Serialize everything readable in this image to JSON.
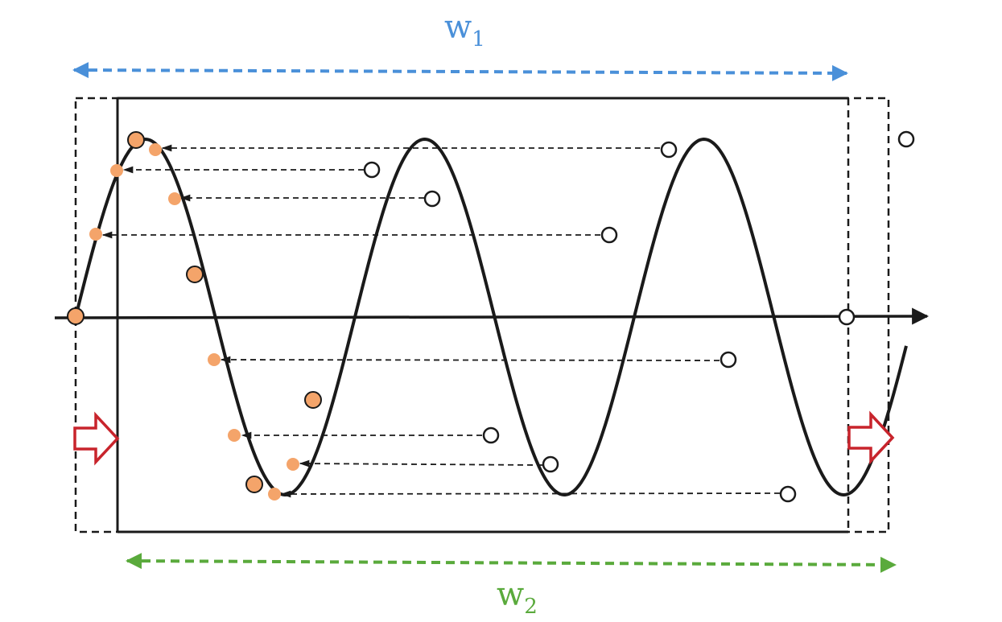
{
  "labels": {
    "w1": {
      "main": "w",
      "sub": "1"
    },
    "w2": {
      "main": "w",
      "sub": "2"
    }
  },
  "colors": {
    "w1": "#4a90d9",
    "w2": "#5aaa3c",
    "curve": "#1a1a1a",
    "orange_point": "#f4a46a",
    "shift_arrow": "#c8242c"
  },
  "icons": [
    "double-headed-dashed-arrow",
    "right-hollow-arrow",
    "horizontal-axis-arrow"
  ]
}
